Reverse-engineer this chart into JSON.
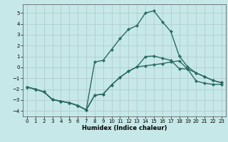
{
  "bg_color": "#c6e8e8",
  "grid_color": "#b0c8c8",
  "line_color": "#2a6b60",
  "marker": "D",
  "markersize": 2.2,
  "linewidth": 1.0,
  "xlabel": "Humidex (Indice chaleur)",
  "xlim": [
    -0.5,
    23.5
  ],
  "ylim": [
    -4.5,
    5.8
  ],
  "xticks": [
    0,
    1,
    2,
    3,
    4,
    5,
    6,
    7,
    8,
    9,
    10,
    11,
    12,
    13,
    14,
    15,
    16,
    17,
    18,
    19,
    20,
    21,
    22,
    23
  ],
  "yticks": [
    -4,
    -3,
    -2,
    -1,
    0,
    1,
    2,
    3,
    4,
    5
  ],
  "series1_x": [
    0,
    1,
    2,
    3,
    4,
    5,
    6,
    7,
    8,
    9,
    10,
    11,
    12,
    13,
    14,
    15,
    16,
    17,
    18,
    19,
    20,
    21,
    22,
    23
  ],
  "series1_y": [
    -1.8,
    -2.0,
    -2.25,
    -2.95,
    -3.1,
    -3.25,
    -3.5,
    -3.9,
    -2.55,
    -2.45,
    -1.6,
    -0.9,
    -0.35,
    0.05,
    0.15,
    0.25,
    0.35,
    0.5,
    0.6,
    -0.15,
    -1.25,
    -1.45,
    -1.55,
    -1.55
  ],
  "series2_x": [
    0,
    1,
    2,
    3,
    4,
    5,
    6,
    7,
    8,
    9,
    10,
    11,
    12,
    13,
    14,
    15,
    16,
    17,
    18,
    19,
    20,
    21,
    22,
    23
  ],
  "series2_y": [
    -1.8,
    -2.0,
    -2.25,
    -2.95,
    -3.1,
    -3.25,
    -3.5,
    -3.9,
    0.5,
    0.65,
    1.65,
    2.65,
    3.5,
    3.85,
    5.0,
    5.2,
    4.2,
    3.3,
    1.05,
    0.05,
    -0.5,
    -0.85,
    -1.2,
    -1.4
  ],
  "series3_x": [
    0,
    1,
    2,
    3,
    4,
    5,
    6,
    7,
    8,
    9,
    10,
    11,
    12,
    13,
    14,
    15,
    16,
    17,
    18,
    19,
    20,
    21,
    22,
    23
  ],
  "series3_y": [
    -1.8,
    -2.0,
    -2.25,
    -2.95,
    -3.1,
    -3.25,
    -3.5,
    -3.9,
    -2.55,
    -2.45,
    -1.6,
    -0.9,
    -0.35,
    0.05,
    1.0,
    1.05,
    0.85,
    0.65,
    -0.1,
    -0.15,
    -0.5,
    -0.85,
    -1.2,
    -1.4
  ]
}
